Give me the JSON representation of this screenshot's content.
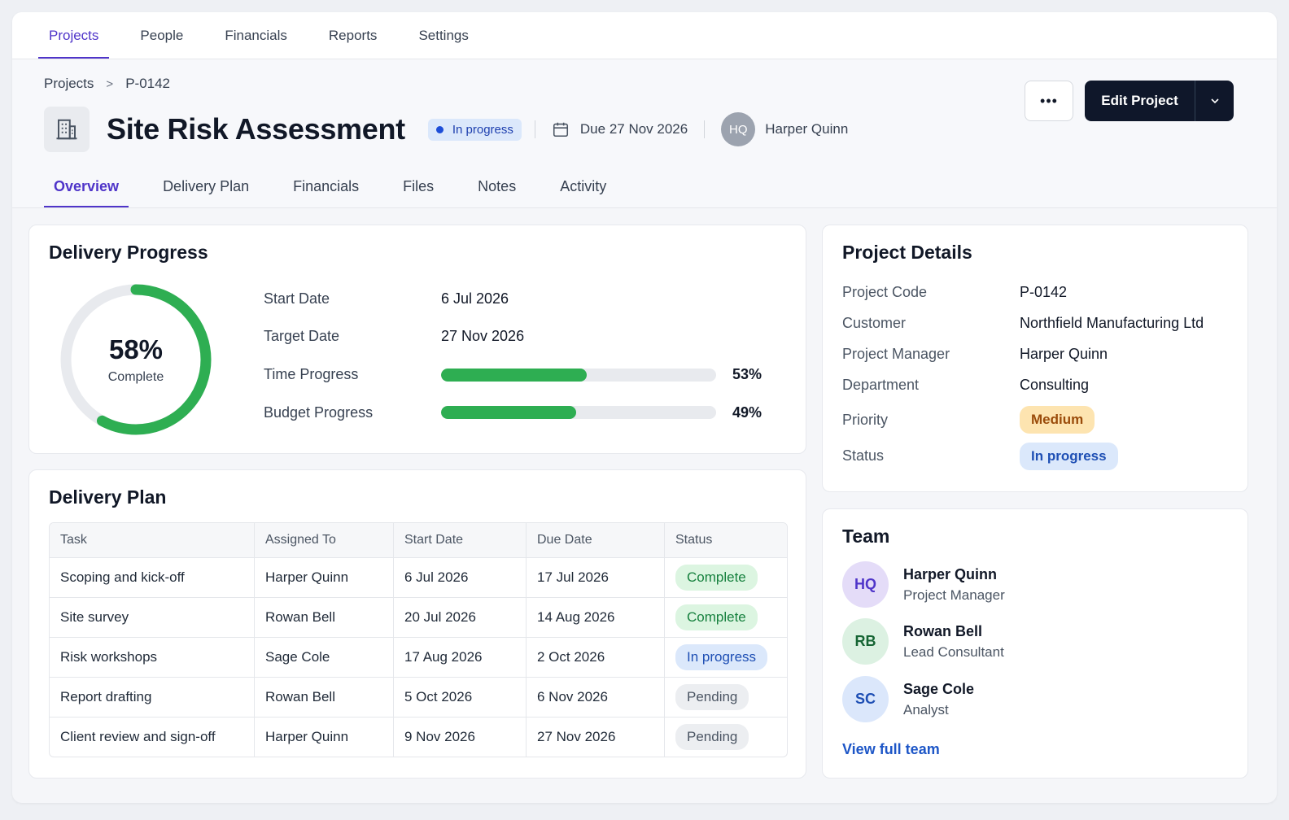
{
  "topnav": {
    "items": [
      "Projects",
      "People",
      "Financials",
      "Reports",
      "Settings"
    ],
    "active": "Projects"
  },
  "breadcrumb": {
    "root": "Projects",
    "separator": ">",
    "current": "P-0142"
  },
  "header": {
    "icon": "building-icon",
    "title": "Site Risk Assessment",
    "status": "In progress",
    "due": "Due 27 Nov 2026",
    "owner_initials": "HQ",
    "owner_name": "Harper Quinn",
    "more_label": "•••",
    "edit_label": "Edit Project"
  },
  "subtabs": {
    "items": [
      "Overview",
      "Delivery Plan",
      "Financials",
      "Files",
      "Notes",
      "Activity"
    ],
    "active": "Overview"
  },
  "progress": {
    "title": "Delivery Progress",
    "percent": 58,
    "percent_label": "58%",
    "complete_label": "Complete",
    "start_label": "Start Date",
    "start_value": "6 Jul 2026",
    "target_label": "Target Date",
    "target_value": "27 Nov 2026",
    "time_label": "Time Progress",
    "time_percent": 53,
    "time_percent_label": "53%",
    "budget_label": "Budget Progress",
    "budget_percent": 49,
    "budget_percent_label": "49%"
  },
  "plan": {
    "title": "Delivery Plan",
    "columns": [
      "Task",
      "Assigned To",
      "Start Date",
      "Due Date",
      "Status"
    ],
    "rows": [
      {
        "task": "Scoping and kick-off",
        "assigned": "Harper Quinn",
        "start": "6 Jul 2026",
        "due": "17 Jul 2026",
        "status": "Complete"
      },
      {
        "task": "Site survey",
        "assigned": "Rowan Bell",
        "start": "20 Jul 2026",
        "due": "14 Aug 2026",
        "status": "Complete"
      },
      {
        "task": "Risk workshops",
        "assigned": "Sage Cole",
        "start": "17 Aug 2026",
        "due": "2 Oct 2026",
        "status": "In progress"
      },
      {
        "task": "Report drafting",
        "assigned": "Rowan Bell",
        "start": "5 Oct 2026",
        "due": "6 Nov 2026",
        "status": "Pending"
      },
      {
        "task": "Client review and sign-off",
        "assigned": "Harper Quinn",
        "start": "9 Nov 2026",
        "due": "27 Nov 2026",
        "status": "Pending"
      }
    ]
  },
  "details": {
    "title": "Project Details",
    "code_label": "Project Code",
    "code": "P-0142",
    "customer_label": "Customer",
    "customer": "Northfield Manufacturing Ltd",
    "manager_label": "Project Manager",
    "manager": "Harper Quinn",
    "department_label": "Department",
    "department": "Consulting",
    "priority_label": "Priority",
    "priority": "Medium",
    "status_label": "Status",
    "status": "In progress"
  },
  "team": {
    "title": "Team",
    "members": [
      {
        "initials": "HQ",
        "name": "Harper Quinn",
        "role": "Project Manager"
      },
      {
        "initials": "RB",
        "name": "Rowan Bell",
        "role": "Lead Consultant"
      },
      {
        "initials": "SC",
        "name": "Sage Cole",
        "role": "Analyst"
      }
    ],
    "link": "View full team"
  },
  "colors": {
    "accent": "#4f35c9",
    "progress_green": "#2eae52",
    "primary_button": "#0f172a",
    "link": "#1d56c7"
  }
}
